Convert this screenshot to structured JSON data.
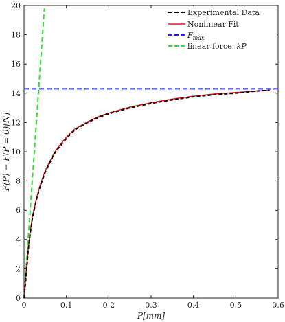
{
  "chart_data": {
    "type": "line",
    "title": "",
    "xlabel": "P[mm]",
    "ylabel": "F(P) − F(P = 0)[N]",
    "xlim": [
      0,
      0.6
    ],
    "ylim": [
      0,
      20
    ],
    "x_ticks": [
      0,
      0.1,
      0.2,
      0.3,
      0.4,
      0.5,
      0.6
    ],
    "y_ticks": [
      0,
      2,
      4,
      6,
      8,
      10,
      12,
      14,
      16,
      18,
      20
    ],
    "grid": false,
    "legend_position": "top-right",
    "series": [
      {
        "name": "Experimental Data",
        "color": "#000000",
        "style": "dashed",
        "x": [
          0,
          0.005,
          0.01,
          0.015,
          0.02,
          0.03,
          0.04,
          0.05,
          0.06,
          0.07,
          0.08,
          0.1,
          0.12,
          0.15,
          0.18,
          0.2,
          0.25,
          0.3,
          0.35,
          0.4,
          0.45,
          0.5,
          0.55,
          0.58
        ],
        "y": [
          0,
          1.5,
          3.3,
          4.5,
          5.5,
          6.8,
          7.8,
          8.6,
          9.2,
          9.8,
          10.2,
          10.9,
          11.5,
          12.0,
          12.4,
          12.6,
          13.0,
          13.3,
          13.55,
          13.75,
          13.9,
          14.0,
          14.15,
          14.2
        ]
      },
      {
        "name": "Nonlinear Fit",
        "color": "#e41a1c",
        "style": "solid",
        "x": [
          0,
          0.005,
          0.01,
          0.015,
          0.02,
          0.03,
          0.04,
          0.05,
          0.06,
          0.07,
          0.08,
          0.1,
          0.12,
          0.15,
          0.18,
          0.2,
          0.25,
          0.3,
          0.35,
          0.4,
          0.45,
          0.5,
          0.55,
          0.58
        ],
        "y": [
          0,
          1.7,
          3.4,
          4.6,
          5.6,
          6.9,
          7.9,
          8.7,
          9.3,
          9.85,
          10.3,
          11.0,
          11.55,
          12.05,
          12.45,
          12.65,
          13.05,
          13.35,
          13.6,
          13.8,
          13.95,
          14.05,
          14.15,
          14.2
        ]
      },
      {
        "name": "F_max",
        "color": "#1f1fe6",
        "style": "dashed",
        "x": [
          0,
          0.6
        ],
        "y": [
          14.3,
          14.3
        ]
      },
      {
        "name": "linear force, kP",
        "color": "#33dd33",
        "style": "dashed",
        "x": [
          0,
          0.048
        ],
        "y": [
          0,
          19.8
        ]
      }
    ],
    "legend": {
      "entries": [
        {
          "label": "Experimental Data",
          "color": "#000000"
        },
        {
          "label": "Nonlinear Fit",
          "color": "#e41a1c"
        },
        {
          "label_main": "F",
          "label_sub": "max",
          "color": "#1f1fe6"
        },
        {
          "label": "linear force, ",
          "label_italic": "kP",
          "color": "#33dd33"
        }
      ]
    }
  }
}
